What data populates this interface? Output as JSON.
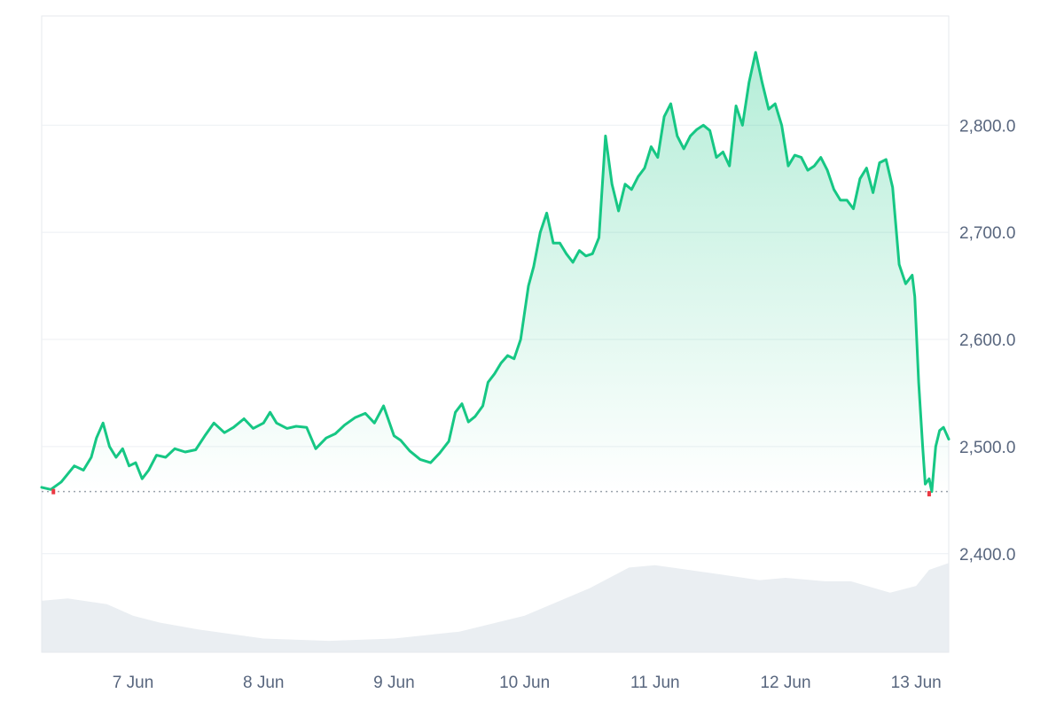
{
  "chart_data": {
    "type": "area",
    "title": "",
    "xlabel": "",
    "ylabel": "",
    "x_ticks": [
      "7 Jun",
      "8 Jun",
      "9 Jun",
      "10 Jun",
      "11 Jun",
      "12 Jun",
      "13 Jun"
    ],
    "y_ticks": [
      2400,
      2500,
      2600,
      2700,
      2800
    ],
    "y_tick_labels": [
      "2,400.0",
      "2,500.0",
      "2,600.0",
      "2,700.0",
      "2,800.0"
    ],
    "ylim": [
      2308,
      2902
    ],
    "baseline": 2458,
    "y_axis_position": "right",
    "grid": true,
    "colors": {
      "line": "#16c784",
      "fill": "#16c784",
      "baseline": "#9aa3ad",
      "volume": "#eaeef2",
      "low_marker": "#ea3943"
    },
    "series": [
      {
        "x": [
          6.3,
          6.37,
          6.45,
          6.55,
          6.62,
          6.68,
          6.72,
          6.77,
          6.82,
          6.87,
          6.92,
          6.97,
          7.02,
          7.07,
          7.12,
          7.18,
          7.25,
          7.32,
          7.4,
          7.48,
          7.55,
          7.62,
          7.7,
          7.77,
          7.85,
          7.92,
          8.0,
          8.05,
          8.1,
          8.18,
          8.25,
          8.33,
          8.4,
          8.48,
          8.55,
          8.62,
          8.7,
          8.78,
          8.85,
          8.92,
          9.0,
          9.05,
          9.12,
          9.2,
          9.28,
          9.35,
          9.42,
          9.47,
          9.52,
          9.57,
          9.62,
          9.68,
          9.72,
          9.77,
          9.82,
          9.87,
          9.92,
          9.97,
          10.0,
          10.03,
          10.07,
          10.12,
          10.17,
          10.22,
          10.27,
          10.32,
          10.37,
          10.42,
          10.47,
          10.52,
          10.57,
          10.62,
          10.67,
          10.72,
          10.77,
          10.82,
          10.87,
          10.92,
          10.97,
          11.02,
          11.07,
          11.12,
          11.17,
          11.22,
          11.27,
          11.32,
          11.37,
          11.42,
          11.47,
          11.52,
          11.57,
          11.62,
          11.67,
          11.72,
          11.77,
          11.82,
          11.87,
          11.92,
          11.97,
          12.02,
          12.07,
          12.12,
          12.17,
          12.22,
          12.27,
          12.32,
          12.37,
          12.42,
          12.47,
          12.52,
          12.57,
          12.62,
          12.67,
          12.72,
          12.77,
          12.82,
          12.87,
          12.92,
          12.97,
          12.99,
          13.02,
          13.05,
          13.07,
          13.1,
          13.12,
          13.15,
          13.18,
          13.21,
          13.25
        ],
        "values": [
          2462,
          2460,
          2467,
          2482,
          2478,
          2490,
          2508,
          2522,
          2500,
          2490,
          2498,
          2482,
          2485,
          2470,
          2478,
          2492,
          2490,
          2498,
          2495,
          2497,
          2510,
          2522,
          2513,
          2518,
          2526,
          2517,
          2522,
          2532,
          2522,
          2517,
          2519,
          2518,
          2498,
          2508,
          2512,
          2520,
          2527,
          2531,
          2522,
          2538,
          2510,
          2506,
          2496,
          2488,
          2485,
          2494,
          2505,
          2532,
          2540,
          2523,
          2528,
          2538,
          2560,
          2568,
          2578,
          2585,
          2582,
          2600,
          2625,
          2650,
          2668,
          2700,
          2718,
          2690,
          2690,
          2680,
          2672,
          2683,
          2678,
          2680,
          2695,
          2790,
          2745,
          2720,
          2745,
          2740,
          2752,
          2760,
          2780,
          2770,
          2808,
          2820,
          2790,
          2778,
          2790,
          2796,
          2800,
          2795,
          2770,
          2775,
          2762,
          2818,
          2800,
          2840,
          2868,
          2840,
          2815,
          2820,
          2800,
          2762,
          2772,
          2770,
          2758,
          2762,
          2770,
          2758,
          2740,
          2730,
          2730,
          2722,
          2750,
          2760,
          2737,
          2765,
          2768,
          2742,
          2670,
          2652,
          2660,
          2640,
          2560,
          2500,
          2465,
          2470,
          2458,
          2500,
          2515,
          2518,
          2507
        ]
      }
    ],
    "low_points": [
      {
        "x": 6.39,
        "y": 2458
      },
      {
        "x": 13.1,
        "y": 2456
      }
    ],
    "volume_series": {
      "x": [
        6.3,
        6.5,
        6.8,
        7.0,
        7.2,
        7.5,
        8.0,
        8.5,
        9.0,
        9.5,
        10.0,
        10.5,
        10.8,
        11.0,
        11.5,
        11.8,
        12.0,
        12.3,
        12.5,
        12.8,
        13.0,
        13.1,
        13.25
      ],
      "values": [
        0.45,
        0.47,
        0.42,
        0.32,
        0.26,
        0.2,
        0.12,
        0.1,
        0.12,
        0.18,
        0.32,
        0.56,
        0.74,
        0.76,
        0.68,
        0.63,
        0.65,
        0.62,
        0.62,
        0.52,
        0.58,
        0.72,
        0.78
      ]
    }
  }
}
